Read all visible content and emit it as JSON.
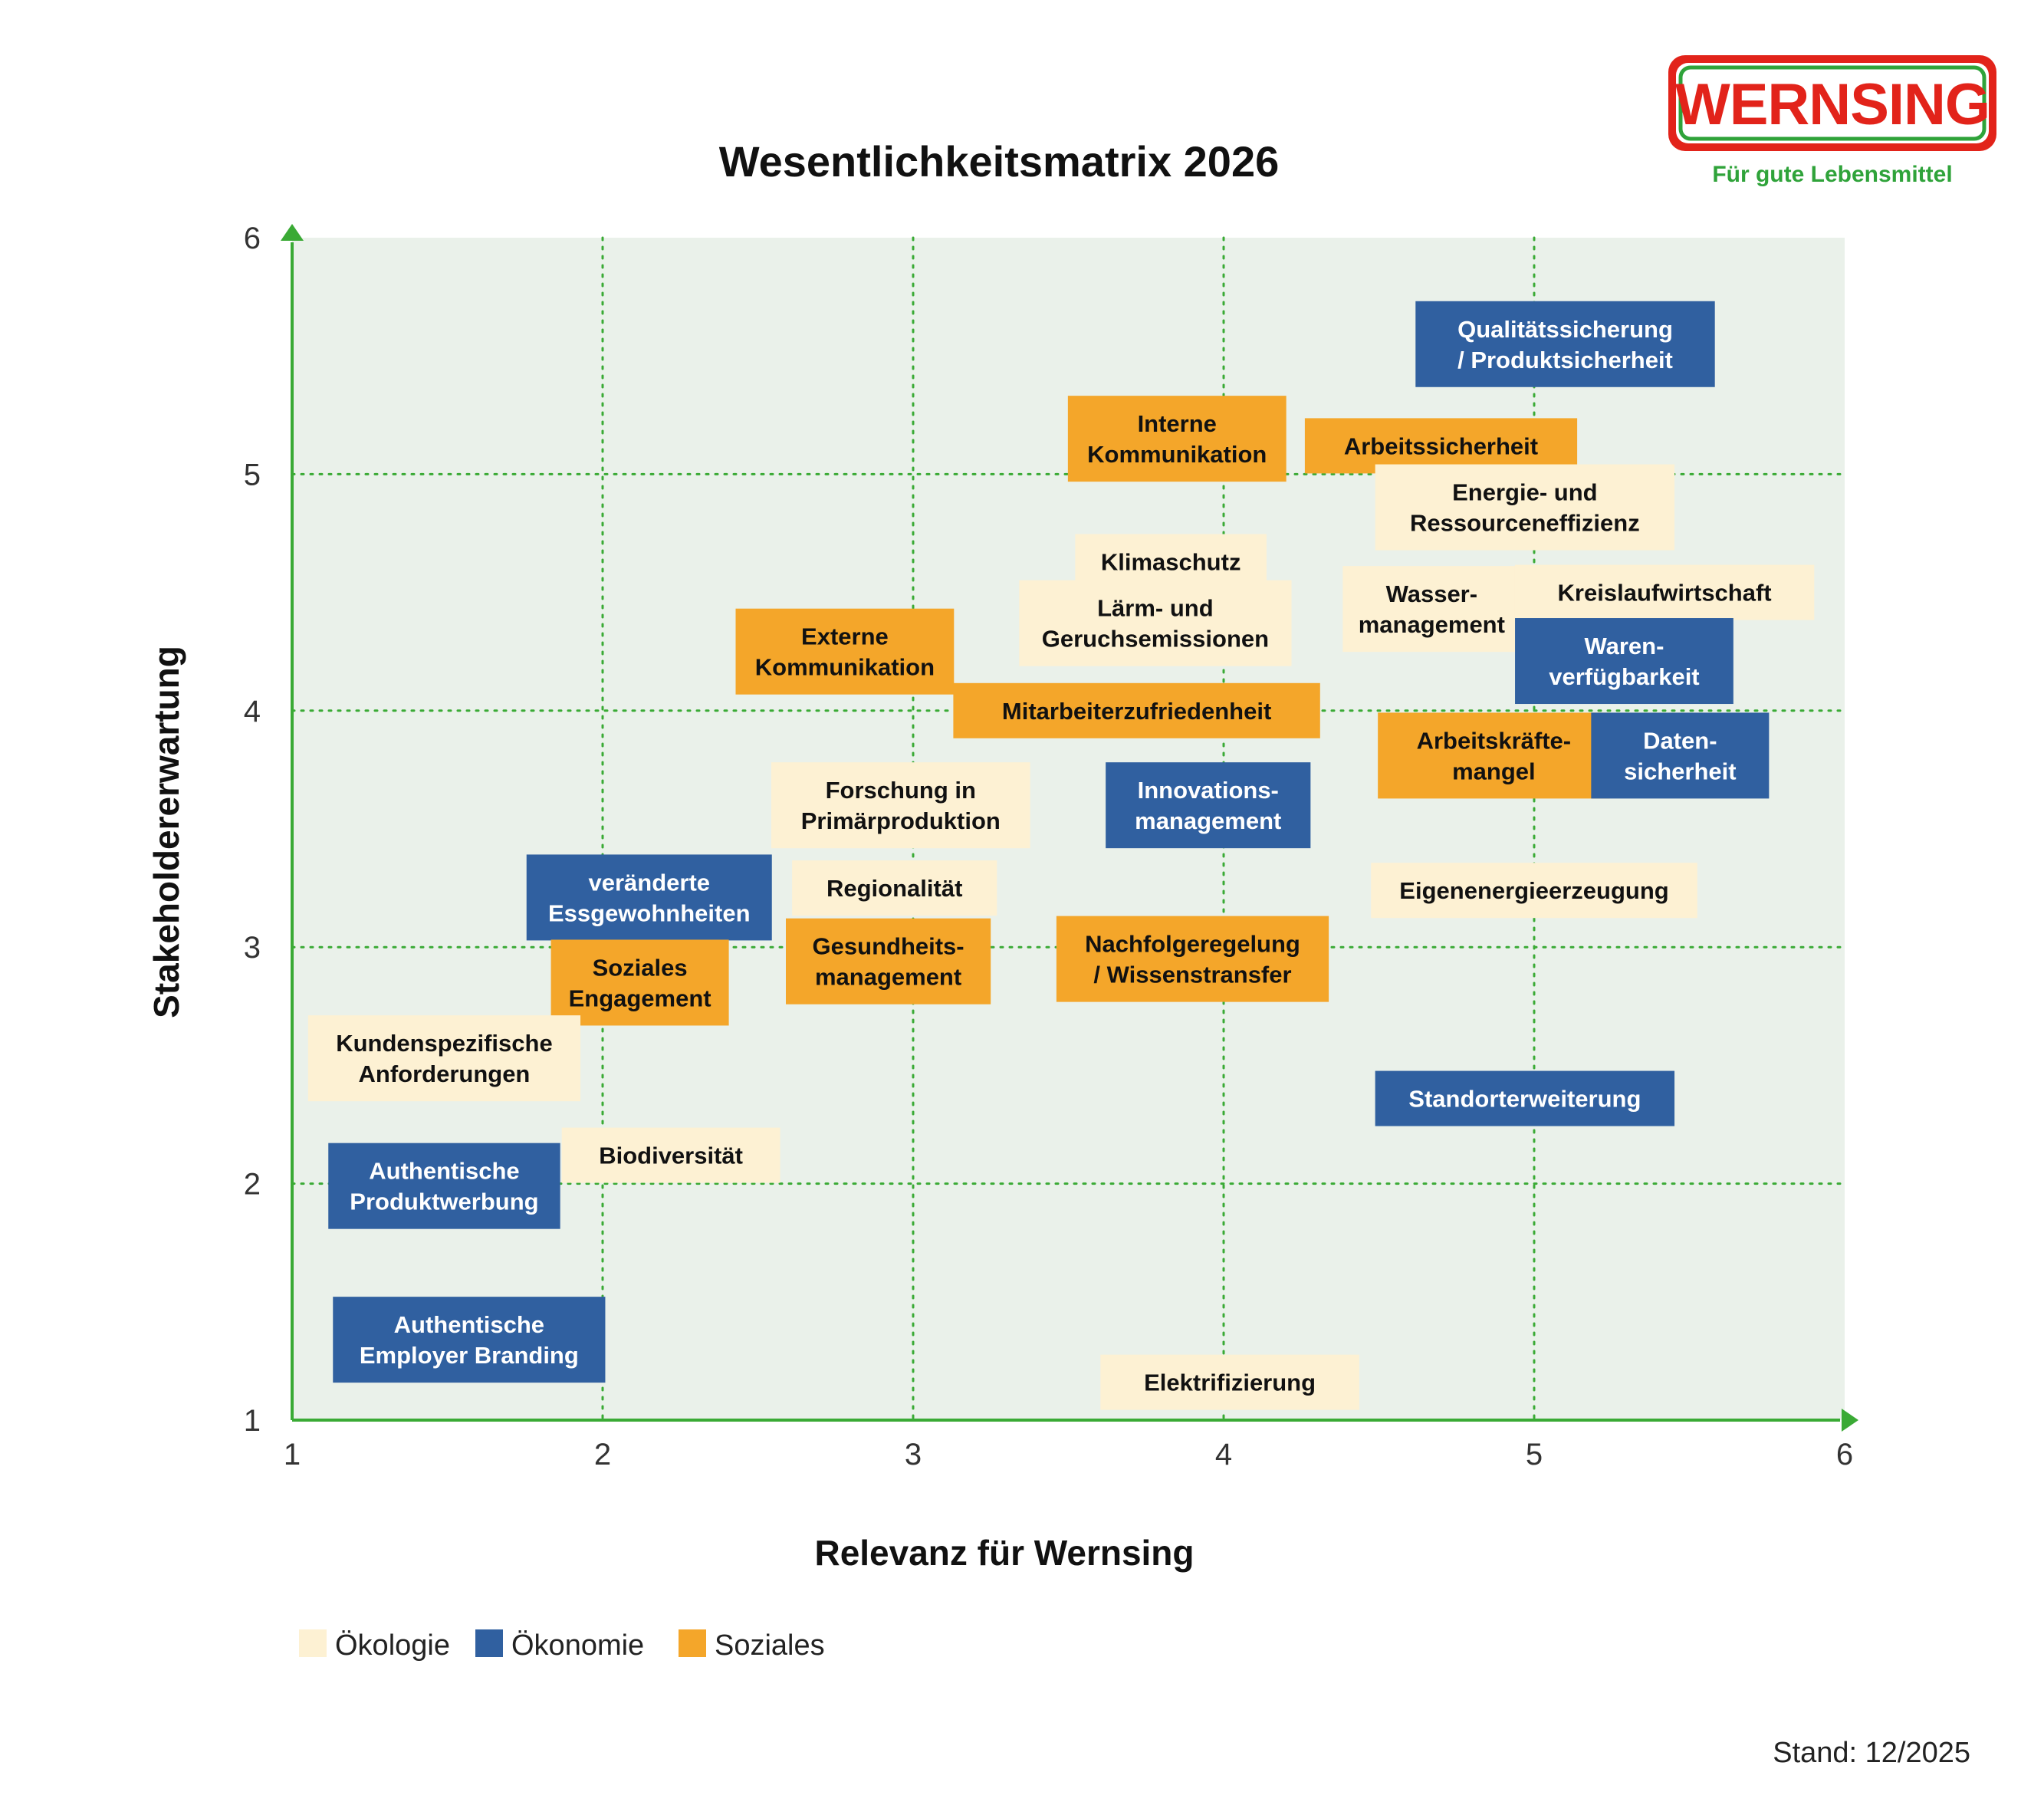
{
  "logo": {
    "brand": "WERNSING",
    "tagline": "Für gute Lebensmittel"
  },
  "footer": {
    "stand": "Stand: 12/2025"
  },
  "chart_data": {
    "type": "scatter",
    "title": "Wesentlichkeitsmatrix 2026",
    "xlabel": "Relevanz für Wernsing",
    "ylabel": "Stakeholdererwartung",
    "xlim": [
      1,
      6
    ],
    "ylim": [
      1,
      6
    ],
    "xticks": [
      "1",
      "2",
      "3",
      "4",
      "5",
      "6"
    ],
    "yticks": [
      "1",
      "2",
      "3",
      "4",
      "5",
      "6"
    ],
    "grid": true,
    "legend_position": "bottom-left",
    "colors": {
      "plot_background": "#eaf1ea",
      "axis": "#3aaa35",
      "grid": "#3aaa35",
      "Ökologie": "#fdf1d3",
      "Ökonomie": "#3060a0",
      "Soziales": "#f4a62a"
    },
    "categories": [
      "Ökologie",
      "Ökonomie",
      "Soziales"
    ],
    "points": [
      {
        "label": [
          "Qualitätssicherung",
          "/ Produktsicherheit"
        ],
        "category": "Ökonomie",
        "x": 5.1,
        "y": 5.55
      },
      {
        "label": [
          "Interne",
          "Kommunikation"
        ],
        "category": "Soziales",
        "x": 3.85,
        "y": 5.15
      },
      {
        "label": [
          "Arbeitssicherheit"
        ],
        "category": "Soziales",
        "x": 4.7,
        "y": 5.12
      },
      {
        "label": [
          "Energie- und",
          "Ressourceneffizienz"
        ],
        "category": "Ökologie",
        "x": 4.97,
        "y": 4.86
      },
      {
        "label": [
          "Klimaschutz"
        ],
        "category": "Ökologie",
        "x": 3.83,
        "y": 4.63
      },
      {
        "label": [
          "Wasser-",
          "management"
        ],
        "category": "Ökologie",
        "x": 4.67,
        "y": 4.43
      },
      {
        "label": [
          "Kreislaufwirtschaft"
        ],
        "category": "Ökologie",
        "x": 5.42,
        "y": 4.5
      },
      {
        "label": [
          "Lärm- und",
          "Geruchsemissionen"
        ],
        "category": "Ökologie",
        "x": 3.78,
        "y": 4.37
      },
      {
        "label": [
          "Externe",
          "Kommunikation"
        ],
        "category": "Soziales",
        "x": 2.78,
        "y": 4.25
      },
      {
        "label": [
          "Waren-",
          "verfügbarkeit"
        ],
        "category": "Ökonomie",
        "x": 5.29,
        "y": 4.21
      },
      {
        "label": [
          "Mitarbeiterzufriedenheit"
        ],
        "category": "Soziales",
        "x": 3.72,
        "y": 4.0
      },
      {
        "label": [
          "Arbeitskräfte-",
          "mangel"
        ],
        "category": "Soziales",
        "x": 4.87,
        "y": 3.81
      },
      {
        "label": [
          "Daten-",
          "sicherheit"
        ],
        "category": "Ökonomie",
        "x": 5.47,
        "y": 3.81
      },
      {
        "label": [
          "Forschung in",
          "Primärproduktion"
        ],
        "category": "Ökologie",
        "x": 2.96,
        "y": 3.6
      },
      {
        "label": [
          "Innovations-",
          "management"
        ],
        "category": "Ökonomie",
        "x": 3.95,
        "y": 3.6
      },
      {
        "label": [
          "veränderte",
          "Essgewohnheiten"
        ],
        "category": "Ökonomie",
        "x": 2.15,
        "y": 3.21
      },
      {
        "label": [
          "Regionalität"
        ],
        "category": "Ökologie",
        "x": 2.94,
        "y": 3.25
      },
      {
        "label": [
          "Eigenenergieerzeugung"
        ],
        "category": "Ökologie",
        "x": 5.0,
        "y": 3.24
      },
      {
        "label": [
          "Nachfolgeregelung",
          "/ Wissenstransfer"
        ],
        "category": "Soziales",
        "x": 3.9,
        "y": 2.95
      },
      {
        "label": [
          "Gesundheits-",
          "management"
        ],
        "category": "Soziales",
        "x": 2.92,
        "y": 2.94
      },
      {
        "label": [
          "Soziales",
          "Engagement"
        ],
        "category": "Soziales",
        "x": 2.12,
        "y": 2.85
      },
      {
        "label": [
          "Kundenspezifische",
          "Anforderungen"
        ],
        "category": "Ökologie",
        "x": 1.49,
        "y": 2.53
      },
      {
        "label": [
          "Standorterweiterung"
        ],
        "category": "Ökonomie",
        "x": 4.97,
        "y": 2.36
      },
      {
        "label": [
          "Biodiversität"
        ],
        "category": "Ökologie",
        "x": 2.22,
        "y": 2.12
      },
      {
        "label": [
          "Authentische",
          "Produktwerbung"
        ],
        "category": "Ökonomie",
        "x": 1.49,
        "y": 1.99
      },
      {
        "label": [
          "Authentische",
          "Employer Branding"
        ],
        "category": "Ökonomie",
        "x": 1.57,
        "y": 1.34
      },
      {
        "label": [
          "Elektrifizierung"
        ],
        "category": "Ökologie",
        "x": 4.02,
        "y": 1.16
      }
    ]
  }
}
